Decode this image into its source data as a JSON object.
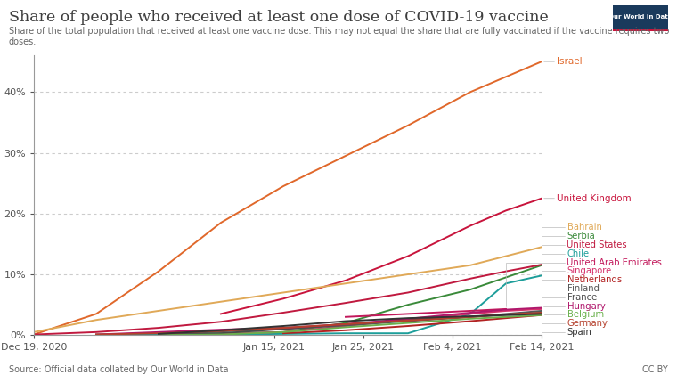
{
  "chart_data": {
    "type": "line",
    "title": "Share of people who received at least one dose of COVID-19 vaccine",
    "subtitle": "Share of the total population that received at least one vaccine dose. This may not equal the share that are fully vaccinated if the vaccine requires two doses.",
    "source": "Source: Official data collated by Our World in Data",
    "license": "CC BY",
    "logo": "Our World in Data",
    "x": [
      "2020-12-19",
      "2020-12-26",
      "2021-01-02",
      "2021-01-09",
      "2021-01-16",
      "2021-01-23",
      "2021-01-30",
      "2021-02-06",
      "2021-02-10",
      "2021-02-14"
    ],
    "xlim": [
      "2020-12-19",
      "2021-02-14"
    ],
    "xticks": [
      {
        "value": "2020-12-19",
        "label": "Dec 19, 2020"
      },
      {
        "value": "2021-01-15",
        "label": "Jan 15, 2021"
      },
      {
        "value": "2021-01-25",
        "label": "Jan 25, 2021"
      },
      {
        "value": "2021-02-04",
        "label": "Feb 4, 2021"
      },
      {
        "value": "2021-02-14",
        "label": "Feb 14, 2021"
      }
    ],
    "ylim": [
      0,
      46
    ],
    "yticks": [
      {
        "value": 0,
        "label": "0%"
      },
      {
        "value": 10,
        "label": "10%"
      },
      {
        "value": 20,
        "label": "20%"
      },
      {
        "value": 30,
        "label": "30%"
      },
      {
        "value": 40,
        "label": "40%"
      }
    ],
    "grid": true,
    "series": [
      {
        "name": "Israel",
        "color": "#e0682b",
        "values": [
          0.1,
          3.5,
          10.5,
          18.5,
          24.5,
          29.5,
          34.5,
          40.0,
          42.5,
          45.0
        ]
      },
      {
        "name": "United Kingdom",
        "color": "#c8143c",
        "values": [
          null,
          null,
          null,
          3.5,
          6.0,
          9.0,
          13.0,
          18.0,
          20.5,
          22.5
        ]
      },
      {
        "name": "Bahrain",
        "color": "#e0a958",
        "values": [
          0.5,
          2.5,
          4.0,
          5.5,
          7.0,
          8.5,
          10.0,
          11.5,
          13.0,
          14.5
        ]
      },
      {
        "name": "Serbia",
        "color": "#3a8a3a",
        "values": [
          null,
          0.1,
          0.2,
          0.3,
          0.5,
          2.0,
          5.0,
          7.5,
          9.5,
          11.5
        ]
      },
      {
        "name": "United States",
        "color": "#c0193f",
        "values": [
          0.1,
          0.5,
          1.2,
          2.2,
          3.7,
          5.3,
          7.0,
          9.3,
          10.5,
          11.6
        ]
      },
      {
        "name": "Chile",
        "color": "#1d9e9a",
        "values": [
          null,
          0.0,
          0.1,
          0.1,
          0.2,
          0.3,
          0.3,
          3.5,
          8.5,
          9.8
        ]
      },
      {
        "name": "United Arab Emirates",
        "color": "#c2185b",
        "values": [
          null,
          null,
          null,
          null,
          null,
          3.0,
          3.5,
          4.0,
          4.3,
          null
        ]
      },
      {
        "name": "Singapore",
        "color": "#d6336c",
        "values": [
          null,
          null,
          null,
          0.2,
          0.5,
          1.5,
          2.5,
          3.5,
          4.0,
          4.3
        ]
      },
      {
        "name": "Netherlands",
        "color": "#b22222",
        "values": [
          null,
          null,
          null,
          null,
          0.3,
          0.8,
          1.5,
          2.3,
          2.8,
          3.3
        ]
      },
      {
        "name": "Finland",
        "color": "#555555",
        "values": [
          null,
          null,
          0.1,
          0.6,
          1.0,
          1.6,
          2.3,
          3.0,
          3.5,
          4.0
        ]
      },
      {
        "name": "France",
        "color": "#4a4a4a",
        "values": [
          null,
          null,
          0.0,
          0.3,
          1.0,
          1.8,
          2.5,
          3.0,
          3.4,
          3.7
        ]
      },
      {
        "name": "Hungary",
        "color": "#b0176b",
        "values": [
          null,
          0.1,
          0.5,
          0.9,
          1.2,
          1.8,
          2.7,
          3.7,
          4.2,
          4.5
        ]
      },
      {
        "name": "Belgium",
        "color": "#6ab04c",
        "values": [
          null,
          null,
          0.0,
          0.1,
          0.5,
          1.3,
          2.0,
          2.7,
          3.0,
          3.3
        ]
      },
      {
        "name": "Germany",
        "color": "#b5402c",
        "values": [
          null,
          0.1,
          0.3,
          0.7,
          1.2,
          1.8,
          2.4,
          3.0,
          3.4,
          3.7
        ]
      },
      {
        "name": "Spain",
        "color": "#333333",
        "values": [
          null,
          null,
          0.2,
          0.8,
          1.5,
          2.3,
          2.8,
          3.1,
          3.3,
          3.5
        ]
      }
    ]
  }
}
